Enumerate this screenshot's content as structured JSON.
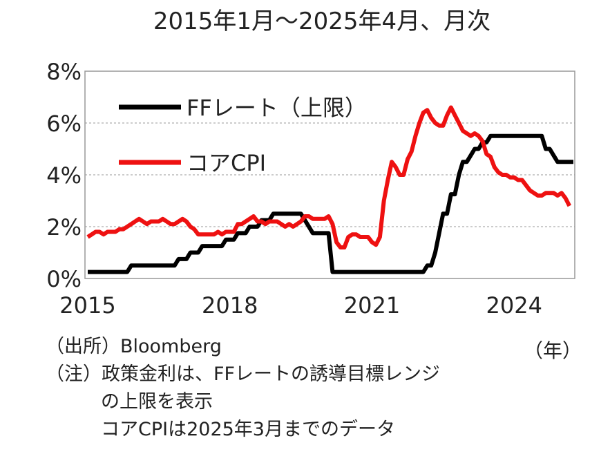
{
  "chart_data": {
    "type": "line",
    "title": "2015年1月～2025年4月、月次",
    "xlabel": "（年）",
    "ylabel": "",
    "ylim": [
      0,
      8
    ],
    "yticks": [
      "0%",
      "2%",
      "4%",
      "6%",
      "8%"
    ],
    "xticks": [
      {
        "label": "2015",
        "year": 2015
      },
      {
        "label": "2018",
        "year": 2018
      },
      {
        "label": "2021",
        "year": 2021
      },
      {
        "label": "2024",
        "year": 2024
      }
    ],
    "x_start": "2015-01",
    "grid": true,
    "legend_position": "top-left",
    "series": [
      {
        "name": "FFレート（上限）",
        "color": "#000000",
        "values": [
          0.25,
          0.25,
          0.25,
          0.25,
          0.25,
          0.25,
          0.25,
          0.25,
          0.25,
          0.25,
          0.25,
          0.5,
          0.5,
          0.5,
          0.5,
          0.5,
          0.5,
          0.5,
          0.5,
          0.5,
          0.5,
          0.5,
          0.5,
          0.75,
          0.75,
          0.75,
          1.0,
          1.0,
          1.0,
          1.25,
          1.25,
          1.25,
          1.25,
          1.25,
          1.25,
          1.5,
          1.5,
          1.5,
          1.75,
          1.75,
          1.75,
          2.0,
          2.0,
          2.0,
          2.25,
          2.25,
          2.25,
          2.5,
          2.5,
          2.5,
          2.5,
          2.5,
          2.5,
          2.5,
          2.5,
          2.25,
          2.0,
          1.75,
          1.75,
          1.75,
          1.75,
          1.75,
          0.25,
          0.25,
          0.25,
          0.25,
          0.25,
          0.25,
          0.25,
          0.25,
          0.25,
          0.25,
          0.25,
          0.25,
          0.25,
          0.25,
          0.25,
          0.25,
          0.25,
          0.25,
          0.25,
          0.25,
          0.25,
          0.25,
          0.25,
          0.25,
          0.5,
          0.5,
          1.0,
          1.75,
          2.5,
          2.5,
          3.25,
          3.25,
          4.0,
          4.5,
          4.5,
          4.75,
          5.0,
          5.0,
          5.25,
          5.25,
          5.5,
          5.5,
          5.5,
          5.5,
          5.5,
          5.5,
          5.5,
          5.5,
          5.5,
          5.5,
          5.5,
          5.5,
          5.5,
          5.5,
          5.0,
          5.0,
          4.75,
          4.5,
          4.5,
          4.5,
          4.5,
          4.5
        ]
      },
      {
        "name": "コアCPI",
        "color": "#ee1111",
        "values": [
          1.6,
          1.7,
          1.8,
          1.8,
          1.7,
          1.8,
          1.8,
          1.8,
          1.9,
          1.9,
          2.0,
          2.1,
          2.2,
          2.3,
          2.2,
          2.1,
          2.2,
          2.2,
          2.2,
          2.3,
          2.2,
          2.1,
          2.1,
          2.2,
          2.3,
          2.2,
          2.0,
          1.9,
          1.7,
          1.7,
          1.7,
          1.7,
          1.7,
          1.8,
          1.7,
          1.8,
          1.8,
          1.8,
          2.1,
          2.1,
          2.2,
          2.3,
          2.4,
          2.2,
          2.2,
          2.1,
          2.2,
          2.2,
          2.2,
          2.1,
          2.0,
          2.1,
          2.0,
          2.1,
          2.2,
          2.4,
          2.4,
          2.3,
          2.3,
          2.3,
          2.3,
          2.4,
          2.1,
          1.4,
          1.2,
          1.2,
          1.6,
          1.7,
          1.7,
          1.6,
          1.6,
          1.6,
          1.4,
          1.3,
          1.6,
          3.0,
          3.8,
          4.5,
          4.3,
          4.0,
          4.0,
          4.6,
          4.9,
          5.5,
          6.0,
          6.4,
          6.5,
          6.2,
          6.0,
          5.9,
          5.9,
          6.3,
          6.6,
          6.3,
          6.0,
          5.7,
          5.6,
          5.5,
          5.6,
          5.5,
          5.3,
          4.8,
          4.7,
          4.3,
          4.1,
          4.0,
          4.0,
          3.9,
          3.9,
          3.8,
          3.8,
          3.6,
          3.4,
          3.3,
          3.2,
          3.2,
          3.3,
          3.3,
          3.3,
          3.2,
          3.3,
          3.1,
          2.8
        ]
      }
    ]
  },
  "notes": {
    "source": "（出所）Bloomberg",
    "note_line1": "（注）政策金利は、FFレートの誘導目標レンジ",
    "note_line2": "の上限を表示",
    "note_line3": "コアCPIは2025年3月までのデータ"
  }
}
